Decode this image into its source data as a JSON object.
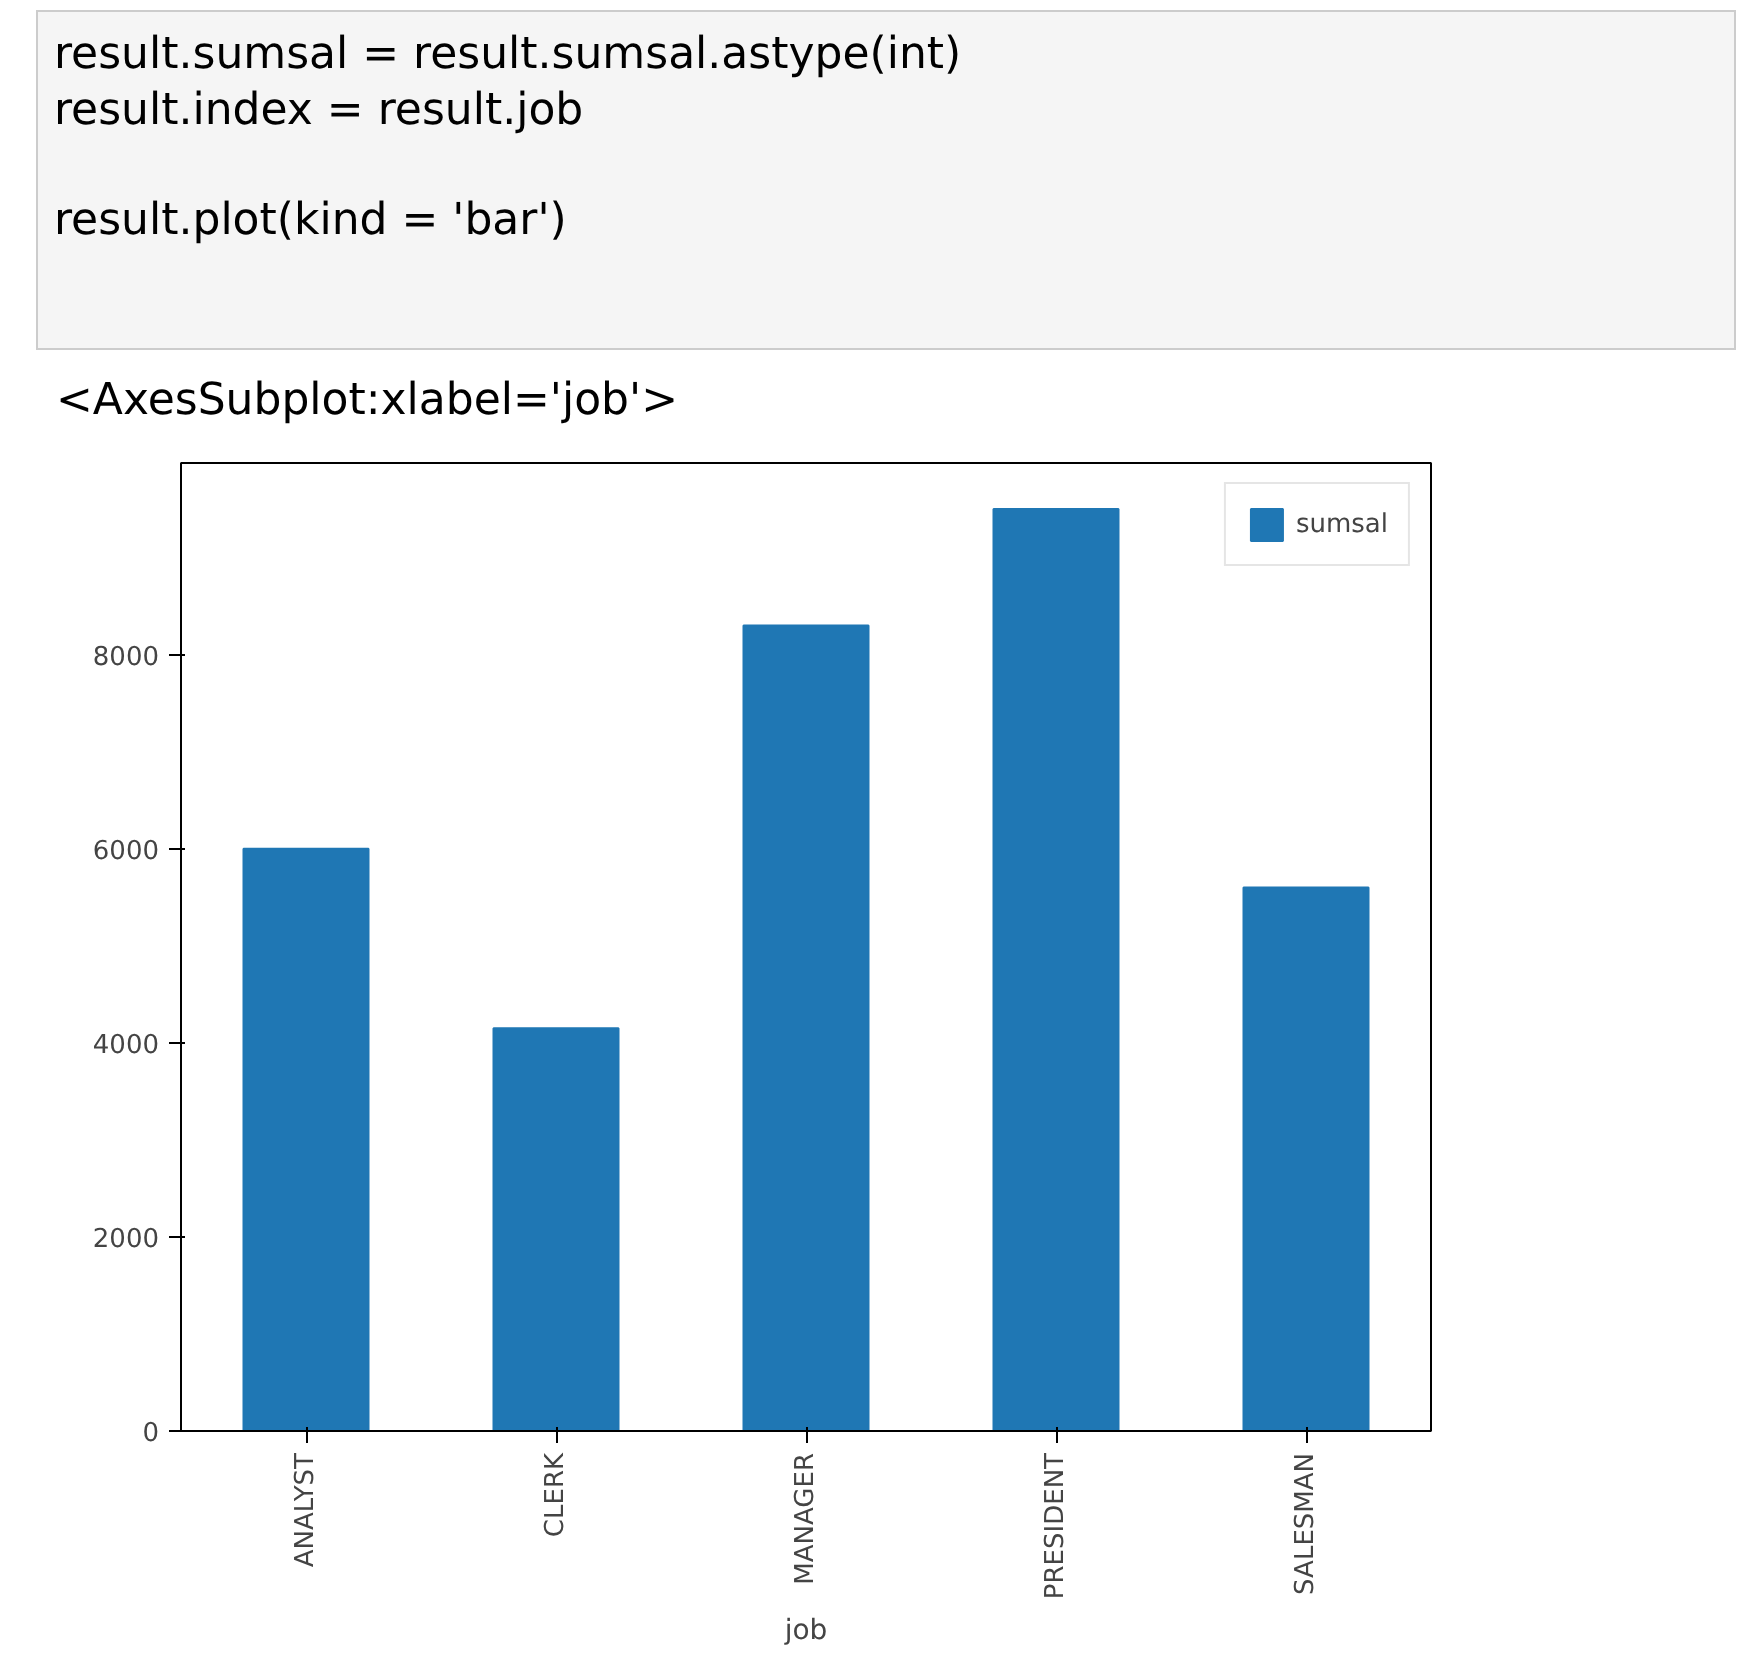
{
  "chart_data": {
    "type": "bar",
    "xlabel": "job",
    "annotations": [
      "result.sumsal = result.sumsal.astype(int)",
      "result.index  = result.job",
      "result.plot(kind = 'bar')",
      "<AxesSubplot:xlabel='job'>"
    ],
    "categories": [
      "ANALYST",
      "CLERK",
      "MANAGER",
      "PRESIDENT",
      "SALESMAN"
    ],
    "series": [
      {
        "name": "sumsal",
        "color": "#1f77b4",
        "values": [
          6000,
          4150,
          8300,
          9500,
          5600
        ]
      }
    ],
    "ylim": [
      0,
      9975
    ],
    "yticks": [
      0,
      2000,
      4000,
      6000,
      8000
    ],
    "grid": false,
    "legend": "top right"
  }
}
